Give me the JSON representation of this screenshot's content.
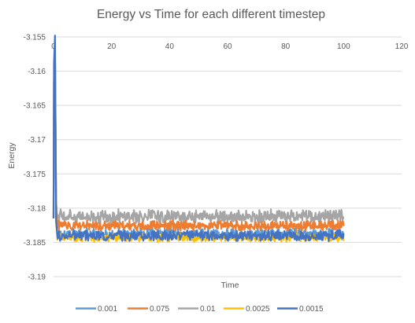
{
  "chart_data": {
    "type": "line",
    "title": "Energy vs Time for each different timestep",
    "xlabel": "Time",
    "ylabel": "Energy",
    "xlim": [
      0,
      120
    ],
    "ylim": [
      -3.19,
      -3.155
    ],
    "xticks": [
      0,
      20,
      40,
      60,
      80,
      100,
      120
    ],
    "yticks": [
      -3.155,
      -3.16,
      -3.165,
      -3.17,
      -3.175,
      -3.18,
      -3.185,
      -3.19
    ],
    "x_axis_position": "top",
    "grid": "horizontal",
    "legend_position": "bottom",
    "series": [
      {
        "name": "0.001",
        "color": "#5B9BD5",
        "x_end": 100,
        "start": -3.1815,
        "initial_peak": -3.1615,
        "level": -3.1838,
        "noise": 0.0006
      },
      {
        "name": "0.075",
        "color": "#ED7D31",
        "x_end": 100,
        "start": -3.1815,
        "initial_peak": -3.1615,
        "level": -3.1826,
        "noise": 0.0006
      },
      {
        "name": "0.01",
        "color": "#A5A5A5",
        "x_end": 100,
        "start": -3.1815,
        "initial_peak": -3.1615,
        "level": -3.1812,
        "noise": 0.0008
      },
      {
        "name": "0.0025",
        "color": "#FFC000",
        "x_end": 100,
        "start": -3.1815,
        "initial_peak": -3.1615,
        "level": -3.1843,
        "noise": 0.0005
      },
      {
        "name": "0.0015",
        "color": "#4472C4",
        "x_end": 100,
        "start": -3.1815,
        "initial_peak": -3.1588,
        "level": -3.184,
        "noise": 0.0006
      }
    ]
  }
}
